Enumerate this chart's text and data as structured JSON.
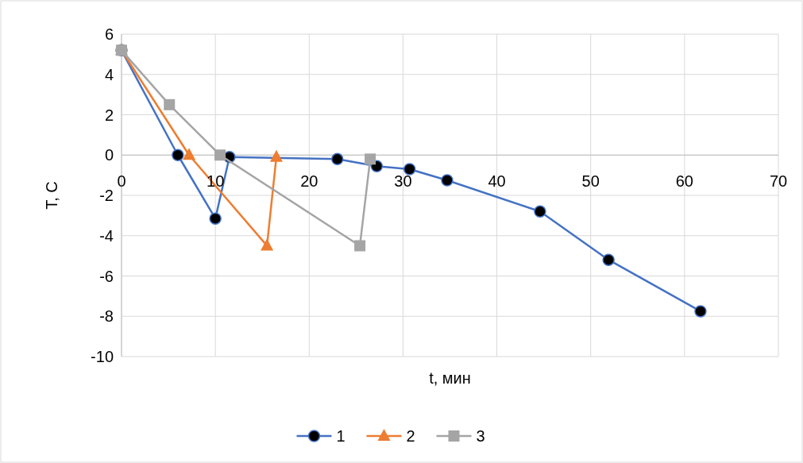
{
  "chart_data": {
    "type": "line",
    "xlabel": "t, мин",
    "ylabel": "T, C",
    "xlim": [
      0,
      70
    ],
    "xticks": [
      0,
      10,
      20,
      30,
      40,
      50,
      60,
      70
    ],
    "ylim": [
      -10,
      6
    ],
    "yticks": [
      -10,
      -8,
      -6,
      -4,
      -2,
      0,
      2,
      4,
      6
    ],
    "grid": true,
    "legend": "bottom",
    "line_style": "solid",
    "series": [
      {
        "name": "1",
        "color": "#4472c4",
        "marker": "circle",
        "x": [
          0,
          6.0,
          10.0,
          11.5,
          23.0,
          27.2,
          30.7,
          34.7,
          44.6,
          51.9,
          61.7
        ],
        "values": [
          5.2,
          0,
          -3.15,
          -0.1,
          -0.2,
          -0.55,
          -0.7,
          -1.25,
          -2.8,
          -5.2,
          -7.75
        ]
      },
      {
        "name": "2",
        "color": "#ed7d31",
        "marker": "triangle",
        "x": [
          0,
          7.2,
          15.5,
          16.5
        ],
        "values": [
          5.2,
          0,
          -4.5,
          -0.1
        ]
      },
      {
        "name": "3",
        "color": "#a5a5a5",
        "marker": "square",
        "x": [
          0,
          5.1,
          10.5,
          25.4,
          26.5
        ],
        "values": [
          5.2,
          2.5,
          0,
          -4.5,
          -0.2
        ]
      }
    ]
  }
}
